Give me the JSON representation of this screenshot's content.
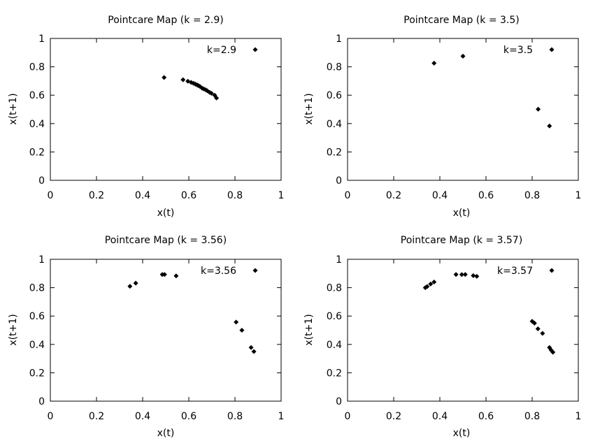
{
  "chart_data": [
    {
      "type": "scatter",
      "title": "Pointcare Map (k = 2.9)",
      "xlabel": "x(t)",
      "ylabel": "x(t+1)",
      "xlim": [
        0,
        1
      ],
      "ylim": [
        0,
        1
      ],
      "xticks": [
        "0",
        "0.2",
        "0.4",
        "0.6",
        "0.8",
        "1"
      ],
      "yticks": [
        "0",
        "0.2",
        "0.4",
        "0.6",
        "0.8",
        "1"
      ],
      "legend": {
        "label": "k=2.9",
        "placement": "top-right"
      },
      "series": [
        {
          "name": "k=2.9",
          "points": [
            [
              0.493,
              0.725
            ],
            [
              0.575,
              0.709
            ],
            [
              0.596,
              0.698
            ],
            [
              0.61,
              0.69
            ],
            [
              0.62,
              0.684
            ],
            [
              0.628,
              0.678
            ],
            [
              0.635,
              0.673
            ],
            [
              0.641,
              0.668
            ],
            [
              0.648,
              0.662
            ],
            [
              0.658,
              0.649
            ],
            [
              0.665,
              0.644
            ],
            [
              0.673,
              0.638
            ],
            [
              0.68,
              0.631
            ],
            [
              0.69,
              0.62
            ],
            [
              0.698,
              0.613
            ],
            [
              0.712,
              0.6
            ],
            [
              0.72,
              0.58
            ]
          ]
        }
      ]
    },
    {
      "type": "scatter",
      "title": "Pointcare Map (k = 3.5)",
      "xlabel": "x(t)",
      "ylabel": "x(t+1)",
      "xlim": [
        0,
        1
      ],
      "ylim": [
        0,
        1
      ],
      "xticks": [
        "0",
        "0.2",
        "0.4",
        "0.6",
        "0.8",
        "1"
      ],
      "yticks": [
        "0",
        "0.2",
        "0.4",
        "0.6",
        "0.8",
        "1"
      ],
      "legend": {
        "label": "k=3.5",
        "placement": "top-right"
      },
      "series": [
        {
          "name": "k=3.5",
          "points": [
            [
              0.375,
              0.826
            ],
            [
              0.5,
              0.875
            ],
            [
              0.826,
              0.501
            ],
            [
              0.875,
              0.383
            ]
          ]
        }
      ]
    },
    {
      "type": "scatter",
      "title": "Pointcare Map (k = 3.56)",
      "xlabel": "x(t)",
      "ylabel": "x(t+1)",
      "xlim": [
        0,
        1
      ],
      "ylim": [
        0,
        1
      ],
      "xticks": [
        "0",
        "0.2",
        "0.4",
        "0.6",
        "0.8",
        "1"
      ],
      "yticks": [
        "0",
        "0.2",
        "0.4",
        "0.6",
        "0.8",
        "1"
      ],
      "legend": {
        "label": "k=3.56",
        "placement": "top-right"
      },
      "series": [
        {
          "name": "k=3.56",
          "points": [
            [
              0.345,
              0.81
            ],
            [
              0.37,
              0.832
            ],
            [
              0.485,
              0.893
            ],
            [
              0.495,
              0.893
            ],
            [
              0.545,
              0.883
            ],
            [
              0.805,
              0.557
            ],
            [
              0.83,
              0.5
            ],
            [
              0.87,
              0.378
            ],
            [
              0.882,
              0.35
            ]
          ]
        }
      ]
    },
    {
      "type": "scatter",
      "title": "Pointcare Map (k = 3.57)",
      "xlabel": "x(t)",
      "ylabel": "x(t+1)",
      "xlim": [
        0,
        1
      ],
      "ylim": [
        0,
        1
      ],
      "xticks": [
        "0",
        "0.2",
        "0.4",
        "0.6",
        "0.8",
        "1"
      ],
      "yticks": [
        "0",
        "0.2",
        "0.4",
        "0.6",
        "0.8",
        "1"
      ],
      "legend": {
        "label": "k=3.57",
        "placement": "top-right"
      },
      "series": [
        {
          "name": "k=3.57",
          "points": [
            [
              0.337,
              0.8
            ],
            [
              0.345,
              0.808
            ],
            [
              0.36,
              0.826
            ],
            [
              0.375,
              0.84
            ],
            [
              0.47,
              0.893
            ],
            [
              0.495,
              0.892
            ],
            [
              0.51,
              0.893
            ],
            [
              0.545,
              0.885
            ],
            [
              0.56,
              0.88
            ],
            [
              0.8,
              0.563
            ],
            [
              0.81,
              0.55
            ],
            [
              0.825,
              0.51
            ],
            [
              0.845,
              0.478
            ],
            [
              0.875,
              0.378
            ],
            [
              0.882,
              0.36
            ],
            [
              0.89,
              0.345
            ]
          ]
        }
      ]
    }
  ]
}
